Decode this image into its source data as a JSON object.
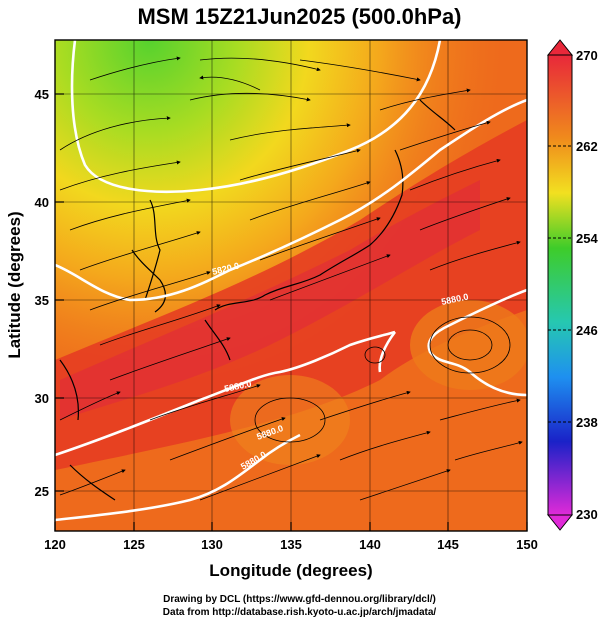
{
  "title": "MSM 15Z21Jun2025 (500.0hPa)",
  "credits": {
    "line1": "Drawing by DCL (https://www.gfd-dennou.org/library/dcl/)",
    "line2": "Data from http://database.rish.kyoto-u.ac.jp/arch/jmadata/"
  },
  "axes": {
    "x_title": "Longitude (degrees)",
    "y_title": "Latitude  (degrees)",
    "x_range": [
      120,
      150
    ],
    "y_range": [
      22.5,
      47.5
    ],
    "x_ticks": [
      "120",
      "125",
      "130",
      "135",
      "140",
      "145",
      "150"
    ],
    "y_ticks": [
      "25",
      "30",
      "35",
      "40",
      "45"
    ]
  },
  "colorbar": {
    "labels": [
      "270",
      "262",
      "254",
      "246",
      "238",
      "230"
    ],
    "min": 230,
    "max": 270
  },
  "contour_labels": [
    "5820.0",
    "5880.0",
    "5880.0",
    "5880.0",
    "5880.0"
  ],
  "colors": {
    "warm": "#e5391c",
    "orange": "#f07a1a",
    "yellow": "#f2d81e",
    "green": "#7ad22a",
    "contour": "#ffffff",
    "stream": "#000000"
  }
}
